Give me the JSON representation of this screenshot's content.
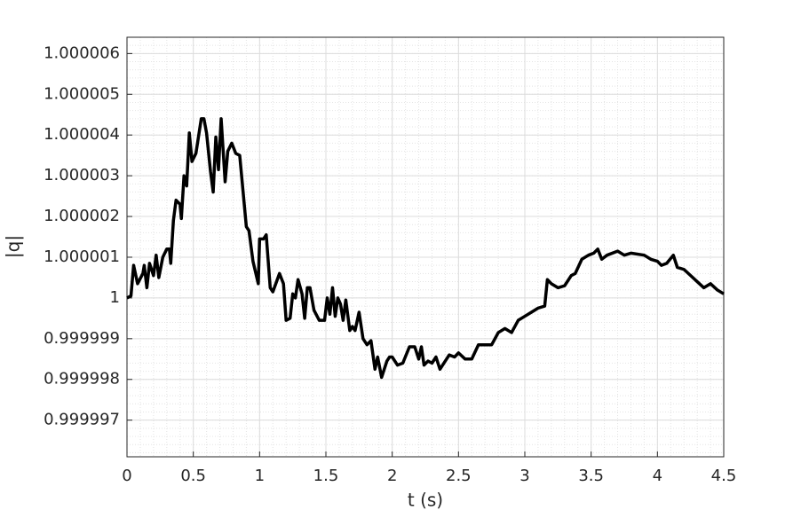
{
  "chart_data": {
    "type": "line",
    "x_label": "t (s)",
    "y_label": "|q|",
    "x": [
      0,
      0.03,
      0.05,
      0.08,
      0.12,
      0.13,
      0.15,
      0.17,
      0.2,
      0.22,
      0.24,
      0.27,
      0.3,
      0.32,
      0.33,
      0.35,
      0.37,
      0.4,
      0.41,
      0.43,
      0.45,
      0.47,
      0.49,
      0.52,
      0.56,
      0.58,
      0.6,
      0.63,
      0.65,
      0.67,
      0.69,
      0.71,
      0.74,
      0.76,
      0.79,
      0.82,
      0.85,
      0.9,
      0.92,
      0.95,
      0.99,
      1.0,
      1.03,
      1.05,
      1.08,
      1.1,
      1.15,
      1.18,
      1.2,
      1.23,
      1.25,
      1.27,
      1.29,
      1.32,
      1.34,
      1.36,
      1.38,
      1.41,
      1.45,
      1.49,
      1.51,
      1.53,
      1.55,
      1.57,
      1.59,
      1.61,
      1.63,
      1.65,
      1.68,
      1.7,
      1.72,
      1.75,
      1.78,
      1.81,
      1.84,
      1.87,
      1.89,
      1.92,
      1.96,
      1.98,
      2.0,
      2.04,
      2.08,
      2.13,
      2.15,
      2.17,
      2.2,
      2.22,
      2.24,
      2.27,
      2.3,
      2.33,
      2.36,
      2.4,
      2.43,
      2.47,
      2.5,
      2.55,
      2.6,
      2.65,
      2.7,
      2.75,
      2.8,
      2.85,
      2.9,
      2.95,
      3.0,
      3.05,
      3.1,
      3.15,
      3.17,
      3.2,
      3.25,
      3.3,
      3.35,
      3.38,
      3.43,
      3.48,
      3.52,
      3.55,
      3.58,
      3.62,
      3.7,
      3.75,
      3.8,
      3.9,
      3.95,
      4.0,
      4.03,
      4.07,
      4.12,
      4.15,
      4.2,
      4.25,
      4.3,
      4.35,
      4.4,
      4.45,
      4.5
    ],
    "values": [
      1,
      1.00000005,
      1.0000008,
      1.00000035,
      1.0000006,
      1.0000008,
      1.00000025,
      1.00000085,
      1.00000055,
      1.00000105,
      1.0000005,
      1.000001,
      1.0000012,
      1.0000012,
      1.00000085,
      1.0000019,
      1.0000024,
      1.0000023,
      1.00000195,
      1.000003,
      1.00000275,
      1.00000405,
      1.00000335,
      1.00000355,
      1.0000044,
      1.0000044,
      1.00000405,
      1.0000031,
      1.0000026,
      1.00000395,
      1.00000315,
      1.0000044,
      1.00000285,
      1.0000036,
      1.0000038,
      1.00000355,
      1.0000035,
      1.00000175,
      1.00000165,
      1.0000009,
      1.00000035,
      1.00000145,
      1.00000145,
      1.00000155,
      1.00000025,
      1.00000015,
      1.0000006,
      1.00000035,
      0.99999945,
      0.9999995,
      1.0000001,
      1,
      1.00000045,
      1.0000001,
      0.9999995,
      1.00000025,
      1.00000025,
      0.9999997,
      0.99999945,
      0.99999945,
      1,
      0.9999996,
      1.00000025,
      0.99999955,
      1,
      0.99999985,
      0.99999945,
      0.99999995,
      0.9999992,
      0.9999993,
      0.9999992,
      0.99999965,
      0.999999,
      0.99999885,
      0.99999895,
      0.99999825,
      0.99999855,
      0.99999805,
      0.99999845,
      0.99999855,
      0.99999855,
      0.99999835,
      0.9999984,
      0.9999988,
      0.9999988,
      0.9999988,
      0.9999985,
      0.9999988,
      0.99999835,
      0.99999845,
      0.9999984,
      0.99999855,
      0.99999825,
      0.99999845,
      0.9999986,
      0.99999855,
      0.99999865,
      0.9999985,
      0.9999985,
      0.99999885,
      0.99999885,
      0.99999885,
      0.99999915,
      0.99999925,
      0.99999915,
      0.99999945,
      0.99999955,
      0.99999965,
      0.99999975,
      0.9999998,
      1.00000045,
      1.00000035,
      1.00000025,
      1.0000003,
      1.00000055,
      1.0000006,
      1.00000095,
      1.00000105,
      1.0000011,
      1.0000012,
      1.00000095,
      1.00000105,
      1.00000115,
      1.00000105,
      1.0000011,
      1.00000105,
      1.00000095,
      1.0000009,
      1.0000008,
      1.00000085,
      1.00000105,
      1.00000075,
      1.0000007,
      1.00000055,
      1.0000004,
      1.00000025,
      1.00000035,
      1.0000002,
      1.0000001
    ],
    "color": "#000000",
    "xlim": [
      0,
      4.5
    ],
    "xticks": [
      0,
      0.5,
      1,
      1.5,
      2,
      2.5,
      3,
      3.5,
      4,
      4.5
    ],
    "ylim": [
      0.9999961,
      1.0000064
    ],
    "yticks": [
      0.999997,
      0.999998,
      0.999999,
      1,
      1.000001,
      1.000002,
      1.000003,
      1.000004,
      1.000005,
      1.000006
    ],
    "grid": true,
    "minor_grid": true
  }
}
